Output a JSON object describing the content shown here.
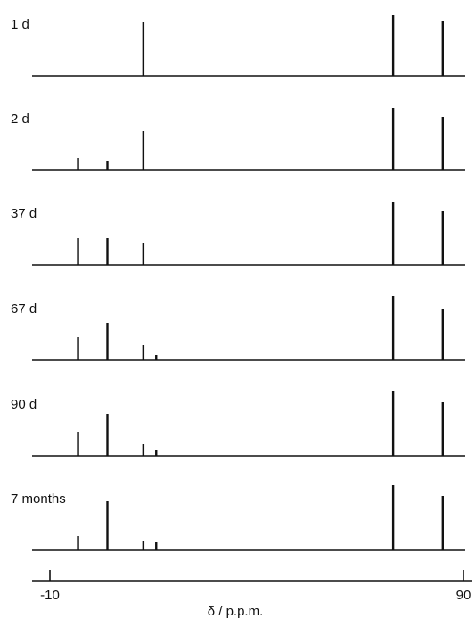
{
  "chart_data": {
    "type": "bar",
    "xlabel": "δ / p.p.m.",
    "xlim": [
      -10,
      90
    ],
    "x_ticks": [
      {
        "value": -10,
        "label": "-10"
      },
      {
        "value": 90,
        "label": "90"
      }
    ],
    "series": [
      {
        "name": "1 d",
        "peaks": [
          {
            "x": 12.6,
            "h": 60
          },
          {
            "x": 73.0,
            "h": 68
          },
          {
            "x": 85.0,
            "h": 62
          }
        ]
      },
      {
        "name": "2 d",
        "peaks": [
          {
            "x": -3.2,
            "h": 14
          },
          {
            "x": 3.9,
            "h": 10
          },
          {
            "x": 12.6,
            "h": 44
          },
          {
            "x": 73.0,
            "h": 70
          },
          {
            "x": 85.0,
            "h": 60
          }
        ]
      },
      {
        "name": "37 d",
        "peaks": [
          {
            "x": -3.2,
            "h": 30
          },
          {
            "x": 3.9,
            "h": 30
          },
          {
            "x": 12.6,
            "h": 25
          },
          {
            "x": 73.0,
            "h": 70
          },
          {
            "x": 85.0,
            "h": 60
          }
        ]
      },
      {
        "name": "67 d",
        "peaks": [
          {
            "x": -3.2,
            "h": 26
          },
          {
            "x": 3.9,
            "h": 42
          },
          {
            "x": 12.6,
            "h": 17
          },
          {
            "x": 15.7,
            "h": 6
          },
          {
            "x": 73.0,
            "h": 72
          },
          {
            "x": 85.0,
            "h": 58
          }
        ]
      },
      {
        "name": "90 d",
        "peaks": [
          {
            "x": -3.2,
            "h": 27
          },
          {
            "x": 3.9,
            "h": 47
          },
          {
            "x": 12.6,
            "h": 13
          },
          {
            "x": 15.7,
            "h": 7
          },
          {
            "x": 73.0,
            "h": 73
          },
          {
            "x": 85.0,
            "h": 60
          }
        ]
      },
      {
        "name": "7 months",
        "peaks": [
          {
            "x": -3.2,
            "h": 16
          },
          {
            "x": 3.9,
            "h": 55
          },
          {
            "x": 12.6,
            "h": 10
          },
          {
            "x": 15.7,
            "h": 9
          },
          {
            "x": 73.0,
            "h": 73
          },
          {
            "x": 85.0,
            "h": 61
          }
        ]
      }
    ]
  }
}
